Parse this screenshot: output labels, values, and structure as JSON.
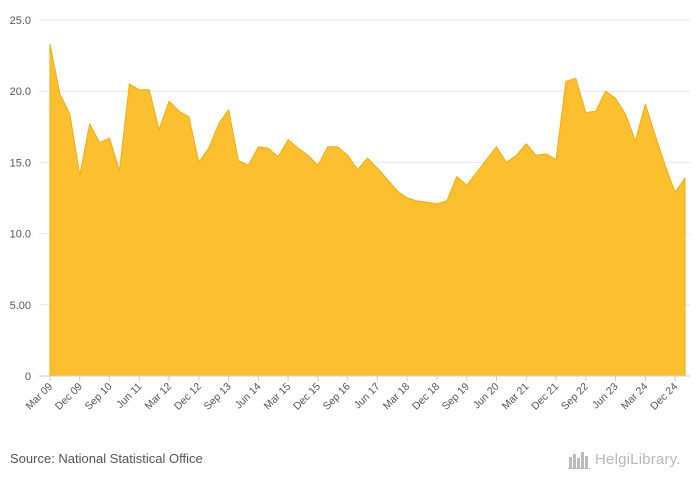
{
  "chart_data": {
    "type": "area",
    "title": "",
    "xlabel": "",
    "ylabel": "",
    "ylim": [
      0,
      25
    ],
    "y_ticks": [
      "0",
      "5.00",
      "10.0",
      "15.0",
      "20.0",
      "25.0"
    ],
    "x_tick_labels": [
      "Mar 09",
      "Dec 09",
      "Sep 10",
      "Jun 11",
      "Mar 12",
      "Dec 12",
      "Sep 13",
      "Jun 14",
      "Mar 15",
      "Dec 15",
      "Sep 16",
      "Jun 17",
      "Mar 18",
      "Dec 18",
      "Sep 19",
      "Jun 20",
      "Mar 21",
      "Dec 21",
      "Sep 22",
      "Jun 23",
      "Mar 24",
      "Dec 24"
    ],
    "fill_color": "#fbbf2f",
    "line_color": "#f0ad12",
    "grid": true,
    "x": [
      "Mar 09",
      "Jun 09",
      "Sep 09",
      "Dec 09",
      "Mar 10",
      "Jun 10",
      "Sep 10",
      "Dec 10",
      "Mar 11",
      "Jun 11",
      "Sep 11",
      "Dec 11",
      "Mar 12",
      "Jun 12",
      "Sep 12",
      "Dec 12",
      "Mar 13",
      "Jun 13",
      "Sep 13",
      "Dec 13",
      "Mar 14",
      "Jun 14",
      "Sep 14",
      "Dec 14",
      "Mar 15",
      "Jun 15",
      "Sep 15",
      "Dec 15",
      "Mar 16",
      "Jun 16",
      "Sep 16",
      "Dec 16",
      "Mar 17",
      "Jun 17",
      "Sep 17",
      "Dec 17",
      "Mar 18",
      "Jun 18",
      "Sep 18",
      "Dec 18",
      "Mar 19",
      "Jun 19",
      "Sep 19",
      "Dec 19",
      "Mar 20",
      "Jun 20",
      "Sep 20",
      "Dec 20",
      "Mar 21",
      "Jun 21",
      "Sep 21",
      "Dec 21",
      "Mar 22",
      "Jun 22",
      "Sep 22",
      "Dec 22",
      "Mar 23",
      "Jun 23",
      "Sep 23",
      "Dec 23",
      "Mar 24",
      "Jun 24",
      "Sep 24",
      "Dec 24",
      "Mar 25"
    ],
    "values": [
      23.3,
      19.8,
      18.4,
      14.1,
      17.7,
      16.4,
      16.7,
      14.4,
      20.5,
      20.1,
      20.1,
      17.3,
      19.3,
      18.6,
      18.2,
      15.0,
      16.0,
      17.7,
      18.7,
      15.1,
      14.8,
      16.1,
      16.0,
      15.4,
      16.6,
      16.0,
      15.5,
      14.8,
      16.1,
      16.1,
      15.5,
      14.5,
      15.3,
      14.6,
      13.8,
      13.0,
      12.5,
      12.3,
      12.2,
      12.1,
      12.3,
      14.0,
      13.4,
      14.3,
      15.2,
      16.1,
      15.0,
      15.5,
      16.3,
      15.5,
      15.6,
      15.2,
      20.7,
      20.9,
      18.5,
      18.6,
      20.0,
      19.5,
      18.4,
      16.5,
      19.1,
      16.9,
      14.8,
      12.9,
      13.9
    ]
  },
  "footer": {
    "source": "Source: National Statistical Office",
    "logo_text": "HelgiLibrary."
  }
}
